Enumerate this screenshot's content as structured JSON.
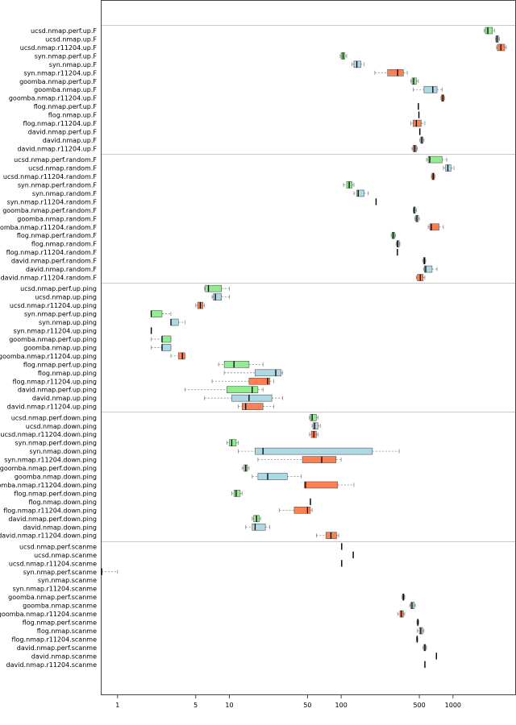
{
  "chart_data": {
    "type": "boxplot",
    "orientation": "horizontal",
    "xscale": "log",
    "xlim": [
      0.72,
      3600
    ],
    "xticks": [
      1,
      5,
      10,
      50,
      100,
      500,
      1000
    ],
    "xtick_labels": [
      "1",
      "5",
      "10",
      "50",
      "100",
      "500",
      "1000"
    ],
    "colors": {
      "perf": "#90ee90",
      "plain": "#add8e6",
      "r11204": "#ff7f50"
    },
    "groups": [
      {
        "name": "up.F",
        "rows": [
          {
            "label": "ucsd.nmap.perf.up.F",
            "variant": "perf",
            "min": 1900,
            "q1": 1950,
            "median": 2050,
            "q3": 2250,
            "max": 2350
          },
          {
            "label": "ucsd.nmap.up.F",
            "variant": "plain",
            "min": 2400,
            "q1": 2420,
            "median": 2480,
            "q3": 2550,
            "max": 2600
          },
          {
            "label": "ucsd.nmap.r11204.up.F",
            "variant": "r11204",
            "min": 2450,
            "q1": 2500,
            "median": 2680,
            "q3": 2900,
            "max": 3000
          },
          {
            "label": "syn.nmap.perf.up.F",
            "variant": "perf",
            "min": 98,
            "q1": 100,
            "median": 104,
            "q3": 108,
            "max": 112
          },
          {
            "label": "syn.nmap.up.F",
            "variant": "plain",
            "min": 125,
            "q1": 130,
            "median": 138,
            "q3": 150,
            "max": 160
          },
          {
            "label": "syn.nmap.r11204.up.F",
            "variant": "r11204",
            "min": 200,
            "q1": 260,
            "median": 320,
            "q3": 360,
            "max": 390
          },
          {
            "label": "goomba.nmap.perf.up.F",
            "variant": "perf",
            "min": 420,
            "q1": 430,
            "median": 445,
            "q3": 470,
            "max": 490
          },
          {
            "label": "goomba.nmap.up.F",
            "variant": "plain",
            "min": 440,
            "q1": 550,
            "median": 660,
            "q3": 720,
            "max": 800
          },
          {
            "label": "goomba.nmap.r11204.up.F",
            "variant": "r11204",
            "min": 780,
            "q1": 790,
            "median": 810,
            "q3": 830,
            "max": 840
          },
          {
            "label": "flog.nmap.perf.up.F",
            "variant": "perf",
            "min": 490,
            "q1": 490,
            "median": 490,
            "q3": 490,
            "max": 490
          },
          {
            "label": "flog.nmap.up.F",
            "variant": "plain",
            "min": 495,
            "q1": 495,
            "median": 495,
            "q3": 495,
            "max": 495
          },
          {
            "label": "flog.nmap.r11204.up.F",
            "variant": "r11204",
            "min": 420,
            "q1": 440,
            "median": 470,
            "q3": 520,
            "max": 560
          },
          {
            "label": "david.nmap.perf.up.F",
            "variant": "perf",
            "min": 505,
            "q1": 505,
            "median": 505,
            "q3": 505,
            "max": 505
          },
          {
            "label": "david.nmap.up.F",
            "variant": "plain",
            "min": 505,
            "q1": 515,
            "median": 525,
            "q3": 540,
            "max": 550
          },
          {
            "label": "david.nmap.r11204.up.F",
            "variant": "r11204",
            "min": 430,
            "q1": 440,
            "median": 455,
            "q3": 470,
            "max": 480
          }
        ]
      },
      {
        "name": "random.F",
        "rows": [
          {
            "label": "ucsd.nmap.perf.random.F",
            "variant": "perf",
            "min": 580,
            "q1": 600,
            "median": 620,
            "q3": 800,
            "max": 880
          },
          {
            "label": "ucsd.nmap.random.F",
            "variant": "plain",
            "min": 820,
            "q1": 860,
            "median": 900,
            "q3": 960,
            "max": 1020
          },
          {
            "label": "ucsd.nmap.r11204.random.F",
            "variant": "r11204",
            "min": 640,
            "q1": 650,
            "median": 665,
            "q3": 680,
            "max": 690
          },
          {
            "label": "syn.nmap.perf.random.F",
            "variant": "perf",
            "min": 105,
            "q1": 112,
            "median": 118,
            "q3": 125,
            "max": 130
          },
          {
            "label": "syn.nmap.random.F",
            "variant": "plain",
            "min": 130,
            "q1": 138,
            "median": 142,
            "q3": 160,
            "max": 175
          },
          {
            "label": "syn.nmap.r11204.random.F",
            "variant": "r11204",
            "min": 205,
            "q1": 205,
            "median": 205,
            "q3": 205,
            "max": 205
          },
          {
            "label": "goomba.nmap.perf.random.F",
            "variant": "perf",
            "min": 440,
            "q1": 445,
            "median": 450,
            "q3": 460,
            "max": 470
          },
          {
            "label": "goomba.nmap.random.F",
            "variant": "plain",
            "min": 455,
            "q1": 465,
            "median": 475,
            "q3": 490,
            "max": 500
          },
          {
            "label": "goomba.nmap.r11204.random.F",
            "variant": "r11204",
            "min": 600,
            "q1": 620,
            "median": 640,
            "q3": 750,
            "max": 820
          },
          {
            "label": "flog.nmap.perf.random.F",
            "variant": "perf",
            "min": 280,
            "q1": 285,
            "median": 292,
            "q3": 300,
            "max": 305
          },
          {
            "label": "flog.nmap.random.F",
            "variant": "plain",
            "min": 310,
            "q1": 315,
            "median": 320,
            "q3": 330,
            "max": 335
          },
          {
            "label": "flog.nmap.r11204.random.F",
            "variant": "r11204",
            "min": 318,
            "q1": 318,
            "median": 318,
            "q3": 318,
            "max": 318
          },
          {
            "label": "david.nmap.perf.random.F",
            "variant": "perf",
            "min": 535,
            "q1": 545,
            "median": 555,
            "q3": 565,
            "max": 570
          },
          {
            "label": "david.nmap.random.F",
            "variant": "plain",
            "min": 545,
            "q1": 555,
            "median": 570,
            "q3": 650,
            "max": 720
          },
          {
            "label": "david.nmap.r11204.random.F",
            "variant": "r11204",
            "min": 470,
            "q1": 480,
            "median": 510,
            "q3": 540,
            "max": 560
          }
        ]
      },
      {
        "name": "up.ping",
        "rows": [
          {
            "label": "ucsd.nmap.perf.up.ping",
            "variant": "perf",
            "min": 6,
            "q1": 6.1,
            "median": 6.5,
            "q3": 8.5,
            "max": 10
          },
          {
            "label": "ucsd.nmap.up.ping",
            "variant": "plain",
            "min": 7,
            "q1": 7.2,
            "median": 7.5,
            "q3": 8.5,
            "max": 10
          },
          {
            "label": "ucsd.nmap.r11204.up.ping",
            "variant": "r11204",
            "min": 5,
            "q1": 5.2,
            "median": 5.5,
            "q3": 5.8,
            "max": 6
          },
          {
            "label": "syn.nmap.perf.up.ping",
            "variant": "perf",
            "min": 2,
            "q1": 2,
            "median": 2,
            "q3": 2.5,
            "max": 3
          },
          {
            "label": "syn.nmap.up.ping",
            "variant": "plain",
            "min": 3,
            "q1": 3,
            "median": 3,
            "q3": 3.5,
            "max": 4
          },
          {
            "label": "syn.nmap.r11204.up.ping",
            "variant": "r11204",
            "min": 2,
            "q1": 2,
            "median": 2,
            "q3": 2,
            "max": 2
          },
          {
            "label": "goomba.nmap.perf.up.ping",
            "variant": "perf",
            "min": 2,
            "q1": 2.5,
            "median": 2.5,
            "q3": 3,
            "max": 3
          },
          {
            "label": "goomba.nmap.up.ping",
            "variant": "plain",
            "min": 2,
            "q1": 2.5,
            "median": 2.5,
            "q3": 3,
            "max": 3
          },
          {
            "label": "goomba.nmap.r11204.up.ping",
            "variant": "r11204",
            "min": 3,
            "q1": 3.5,
            "median": 3.8,
            "q3": 4,
            "max": 4
          },
          {
            "label": "flog.nmap.perf.up.ping",
            "variant": "perf",
            "min": 8,
            "q1": 9,
            "median": 11,
            "q3": 15,
            "max": 20
          },
          {
            "label": "flog.nmap.up.ping",
            "variant": "plain",
            "min": 9,
            "q1": 17,
            "median": 26,
            "q3": 29,
            "max": 30
          },
          {
            "label": "flog.nmap.r11204.up.ping",
            "variant": "r11204",
            "min": 7,
            "q1": 15,
            "median": 22,
            "q3": 23,
            "max": 25
          },
          {
            "label": "david.nmap.perf.up.ping",
            "variant": "perf",
            "min": 4,
            "q1": 9.5,
            "median": 16,
            "q3": 18,
            "max": 20
          },
          {
            "label": "david.nmap.up.ping",
            "variant": "plain",
            "min": 6,
            "q1": 10.5,
            "median": 15,
            "q3": 24,
            "max": 30
          },
          {
            "label": "david.nmap.r11204.up.ping",
            "variant": "r11204",
            "min": 12,
            "q1": 13,
            "median": 14,
            "q3": 20,
            "max": 25
          }
        ]
      },
      {
        "name": "down.ping",
        "rows": [
          {
            "label": "ucsd.nmap.perf.down.ping",
            "variant": "perf",
            "min": 52,
            "q1": 53,
            "median": 55,
            "q3": 60,
            "max": 62
          },
          {
            "label": "ucsd.nmap.down.ping",
            "variant": "plain",
            "min": 55,
            "q1": 56,
            "median": 58,
            "q3": 62,
            "max": 65
          },
          {
            "label": "ucsd.nmap.r11204.down.ping",
            "variant": "r11204",
            "min": 52,
            "q1": 54,
            "median": 57,
            "q3": 60,
            "max": 62
          },
          {
            "label": "syn.nmap.perf.down.ping",
            "variant": "perf",
            "min": 9.5,
            "q1": 10,
            "median": 10.5,
            "q3": 11.5,
            "max": 12
          },
          {
            "label": "syn.nmap.down.ping",
            "variant": "plain",
            "min": 12,
            "q1": 17,
            "median": 20,
            "q3": 190,
            "max": 330
          },
          {
            "label": "syn.nmap.r11204.down.ping",
            "variant": "r11204",
            "min": 18,
            "q1": 45,
            "median": 67,
            "q3": 90,
            "max": 100
          },
          {
            "label": "goomba.nmap.perf.down.ping",
            "variant": "perf",
            "min": 13,
            "q1": 13.5,
            "median": 14,
            "q3": 14.5,
            "max": 15
          },
          {
            "label": "goomba.nmap.down.ping",
            "variant": "plain",
            "min": 16,
            "q1": 18,
            "median": 22,
            "q3": 33,
            "max": 44
          },
          {
            "label": "goomba.nmap.r11204.down.ping",
            "variant": "r11204",
            "min": 47,
            "q1": 47,
            "median": 48,
            "q3": 93,
            "max": 130
          },
          {
            "label": "flog.nmap.perf.down.ping",
            "variant": "perf",
            "min": 10.5,
            "q1": 11,
            "median": 11.5,
            "q3": 12.5,
            "max": 13
          },
          {
            "label": "flog.nmap.down.ping",
            "variant": "plain",
            "min": 53,
            "q1": 53,
            "median": 53,
            "q3": 53,
            "max": 53
          },
          {
            "label": "flog.nmap.r11204.down.ping",
            "variant": "r11204",
            "min": 28,
            "q1": 38,
            "median": 50,
            "q3": 53,
            "max": 55
          },
          {
            "label": "david.nmap.perf.down.ping",
            "variant": "perf",
            "min": 16,
            "q1": 16.5,
            "median": 17.5,
            "q3": 18.5,
            "max": 19
          },
          {
            "label": "david.nmap.down.ping",
            "variant": "plain",
            "min": 14,
            "q1": 16,
            "median": 17,
            "q3": 21,
            "max": 23
          },
          {
            "label": "david.nmap.r11204.down.ping",
            "variant": "r11204",
            "min": 60,
            "q1": 73,
            "median": 81,
            "q3": 91,
            "max": 95
          }
        ]
      },
      {
        "name": "scanme",
        "rows": [
          {
            "label": "ucsd.nmap.perf.scanme",
            "variant": "perf",
            "min": 101,
            "q1": 101,
            "median": 101,
            "q3": 101,
            "max": 101
          },
          {
            "label": "ucsd.nmap.scanme",
            "variant": "plain",
            "min": 128,
            "q1": 128,
            "median": 128,
            "q3": 128,
            "max": 128
          },
          {
            "label": "ucsd.nmap.r11204.scanme",
            "variant": "r11204",
            "min": 101,
            "q1": 101,
            "median": 101,
            "q3": 101,
            "max": 101
          },
          {
            "label": "syn.nmap.perf.scanme",
            "variant": "perf",
            "min": 0.72,
            "q1": 0.72,
            "median": 0.72,
            "q3": 0.72,
            "max": 1
          },
          {
            "label": "syn.nmap.scanme",
            "variant": "plain",
            "min": null
          },
          {
            "label": "syn.nmap.r11204.scanme",
            "variant": "r11204",
            "min": null
          },
          {
            "label": "goomba.nmap.perf.scanme",
            "variant": "perf",
            "min": 350,
            "q1": 355,
            "median": 360,
            "q3": 365,
            "max": 370
          },
          {
            "label": "goomba.nmap.scanme",
            "variant": "plain",
            "min": 410,
            "q1": 420,
            "median": 430,
            "q3": 450,
            "max": 460
          },
          {
            "label": "goomba.nmap.r11204.scanme",
            "variant": "r11204",
            "min": 320,
            "q1": 335,
            "median": 345,
            "q3": 360,
            "max": 370
          },
          {
            "label": "flog.nmap.perf.scanme",
            "variant": "perf",
            "min": 475,
            "q1": 480,
            "median": 485,
            "q3": 490,
            "max": 495
          },
          {
            "label": "flog.nmap.scanme",
            "variant": "plain",
            "min": 480,
            "q1": 500,
            "median": 515,
            "q3": 535,
            "max": 550
          },
          {
            "label": "flog.nmap.r11204.scanme",
            "variant": "r11204",
            "min": 470,
            "q1": 475,
            "median": 478,
            "q3": 482,
            "max": 485
          },
          {
            "label": "david.nmap.perf.scanme",
            "variant": "perf",
            "min": 540,
            "q1": 550,
            "median": 560,
            "q3": 570,
            "max": 580
          },
          {
            "label": "david.nmap.scanme",
            "variant": "plain",
            "min": 710,
            "q1": 710,
            "median": 710,
            "q3": 710,
            "max": 710
          },
          {
            "label": "david.nmap.r11204.scanme",
            "variant": "r11204",
            "min": 560,
            "q1": 560,
            "median": 560,
            "q3": 560,
            "max": 560
          }
        ]
      }
    ]
  }
}
